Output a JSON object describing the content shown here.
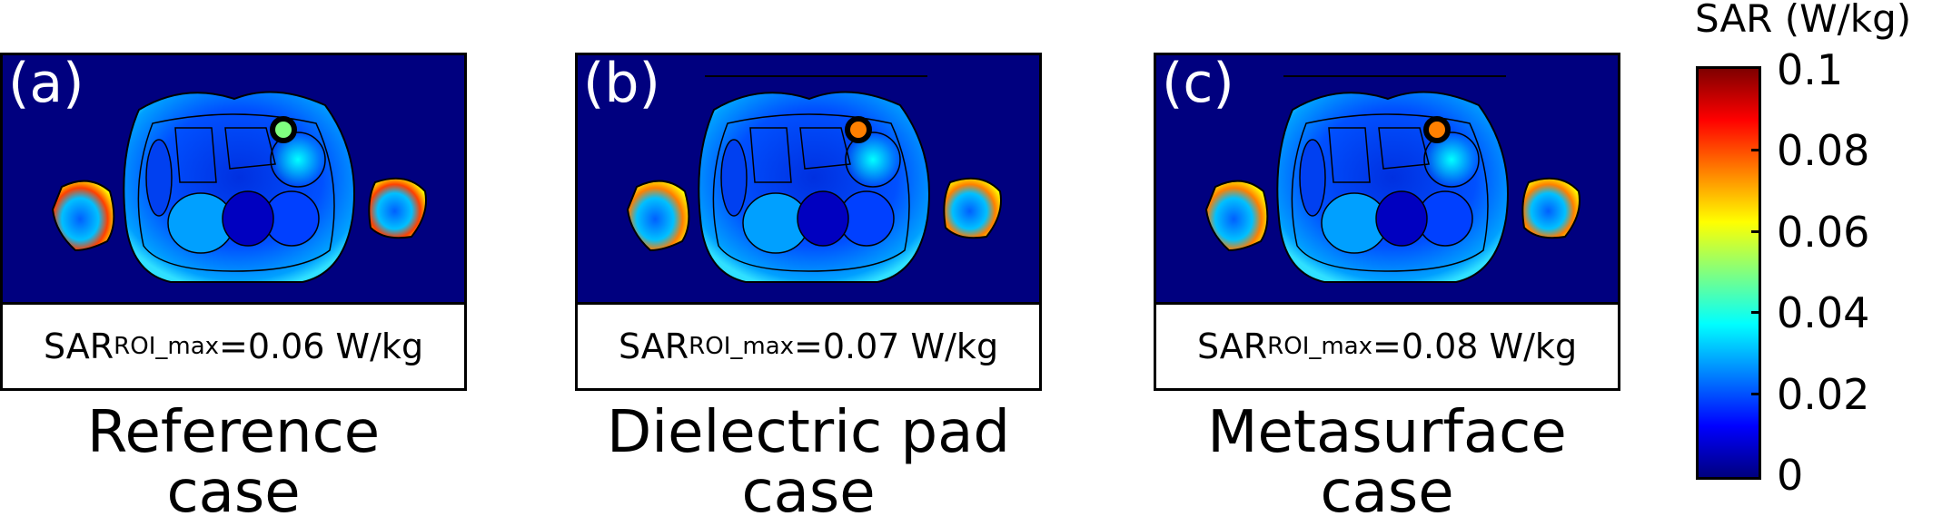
{
  "panels": [
    {
      "tag": "(a)",
      "sar_label": "SAR",
      "sar_sub": "ROI_max",
      "sar_value": "=0.06 W/kg",
      "caption_line1": "Reference",
      "caption_line2": "case",
      "top_pad": false,
      "coil_color": "#80ff80",
      "arm_hot": "#ff4000"
    },
    {
      "tag": "(b)",
      "sar_label": "SAR",
      "sar_sub": "ROI_max",
      "sar_value": "=0.07 W/kg",
      "caption_line1": "Dielectric pad",
      "caption_line2": "case",
      "top_pad": true,
      "coil_color": "#ff8000",
      "arm_hot": "#ff8000"
    },
    {
      "tag": "(c)",
      "sar_label": "SAR",
      "sar_sub": "ROI_max",
      "sar_value": "=0.08 W/kg",
      "caption_line1": "Metasurface",
      "caption_line2": "case",
      "top_pad": true,
      "coil_color": "#ff8000",
      "arm_hot": "#ff8000"
    }
  ],
  "colorbar": {
    "title": "SAR (W/kg)",
    "colormap": "jet",
    "range": [
      0,
      0.1
    ],
    "ticks": [
      "0.1",
      "0.08",
      "0.06",
      "0.04",
      "0.02",
      "0"
    ]
  }
}
